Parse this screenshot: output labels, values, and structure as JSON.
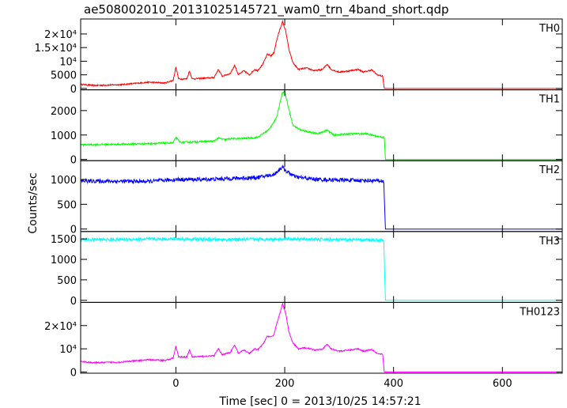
{
  "chart_data": {
    "type": "line",
    "title": "ae508002010_20131025145721_wam0_trn_4band_short.qdp",
    "xlabel": "Time [sec] 0 = 2013/10/25 14:57:21",
    "ylabel": "Counts/sec",
    "xlim": [
      -175,
      710
    ],
    "x_ticks": [
      {
        "value": 0,
        "label": "0"
      },
      {
        "value": 200,
        "label": "200"
      },
      {
        "value": 400,
        "label": "400"
      },
      {
        "value": 600,
        "label": "600"
      }
    ],
    "grid": false,
    "panels": [
      {
        "label": "TH0",
        "color": "#ff0000",
        "ylim": [
          -500,
          25500
        ],
        "y_ticks": [
          {
            "value": 0,
            "label": "0"
          },
          {
            "value": 5000,
            "label": "5000"
          },
          {
            "value": 10000,
            "label": "10⁴"
          },
          {
            "value": 15000,
            "label": "1.5×10⁴"
          },
          {
            "value": 20000,
            "label": "2×10⁴"
          }
        ],
        "noise": 250,
        "points": [
          [
            -175,
            1500
          ],
          [
            -150,
            1100
          ],
          [
            -100,
            1400
          ],
          [
            -50,
            2300
          ],
          [
            -20,
            2000
          ],
          [
            -5,
            3000
          ],
          [
            0,
            7800
          ],
          [
            5,
            3500
          ],
          [
            20,
            3500
          ],
          [
            25,
            6400
          ],
          [
            30,
            3500
          ],
          [
            70,
            4000
          ],
          [
            78,
            7000
          ],
          [
            85,
            4500
          ],
          [
            100,
            5500
          ],
          [
            108,
            8500
          ],
          [
            115,
            5000
          ],
          [
            125,
            6500
          ],
          [
            135,
            5000
          ],
          [
            145,
            7000
          ],
          [
            150,
            6500
          ],
          [
            160,
            9000
          ],
          [
            168,
            12500
          ],
          [
            175,
            12000
          ],
          [
            180,
            13000
          ],
          [
            185,
            17500
          ],
          [
            190,
            21000
          ],
          [
            196,
            24500
          ],
          [
            202,
            21000
          ],
          [
            208,
            14000
          ],
          [
            215,
            9500
          ],
          [
            225,
            7000
          ],
          [
            240,
            7500
          ],
          [
            255,
            6500
          ],
          [
            270,
            7000
          ],
          [
            278,
            9000
          ],
          [
            285,
            7000
          ],
          [
            300,
            6000
          ],
          [
            320,
            6500
          ],
          [
            335,
            7000
          ],
          [
            345,
            6000
          ],
          [
            360,
            6800
          ],
          [
            370,
            5000
          ],
          [
            380,
            4500
          ],
          [
            383,
            0
          ],
          [
            710,
            0
          ]
        ]
      },
      {
        "label": "TH1",
        "color": "#00ff00",
        "ylim": [
          -50,
          2850
        ],
        "y_ticks": [
          {
            "value": 0,
            "label": "0"
          },
          {
            "value": 1000,
            "label": "1000"
          },
          {
            "value": 2000,
            "label": "2000"
          }
        ],
        "noise": 35,
        "points": [
          [
            -175,
            600
          ],
          [
            -100,
            620
          ],
          [
            -50,
            650
          ],
          [
            -5,
            680
          ],
          [
            0,
            900
          ],
          [
            8,
            700
          ],
          [
            70,
            750
          ],
          [
            78,
            880
          ],
          [
            90,
            800
          ],
          [
            100,
            850
          ],
          [
            120,
            850
          ],
          [
            150,
            900
          ],
          [
            170,
            1200
          ],
          [
            185,
            1700
          ],
          [
            195,
            2700
          ],
          [
            200,
            2800
          ],
          [
            205,
            2300
          ],
          [
            215,
            1400
          ],
          [
            230,
            1200
          ],
          [
            260,
            1050
          ],
          [
            278,
            1200
          ],
          [
            290,
            1000
          ],
          [
            320,
            1050
          ],
          [
            350,
            1050
          ],
          [
            370,
            950
          ],
          [
            383,
            900
          ],
          [
            385,
            0
          ],
          [
            710,
            0
          ]
        ]
      },
      {
        "label": "TH2",
        "color": "#0000ff",
        "ylim": [
          -50,
          1380
        ],
        "y_ticks": [
          {
            "value": 0,
            "label": "0"
          },
          {
            "value": 500,
            "label": "500"
          },
          {
            "value": 1000,
            "label": "1000"
          }
        ],
        "noise": 40,
        "points": [
          [
            -175,
            970
          ],
          [
            -50,
            960
          ],
          [
            0,
            1000
          ],
          [
            50,
            1000
          ],
          [
            100,
            1020
          ],
          [
            150,
            1040
          ],
          [
            180,
            1100
          ],
          [
            195,
            1250
          ],
          [
            205,
            1150
          ],
          [
            220,
            1050
          ],
          [
            260,
            1000
          ],
          [
            300,
            990
          ],
          [
            350,
            980
          ],
          [
            382,
            970
          ],
          [
            385,
            0
          ],
          [
            710,
            0
          ]
        ]
      },
      {
        "label": "TH3",
        "color": "#00ffff",
        "ylim": [
          -50,
          1680
        ],
        "y_ticks": [
          {
            "value": 0,
            "label": "0"
          },
          {
            "value": 500,
            "label": "500"
          },
          {
            "value": 1000,
            "label": "1000"
          },
          {
            "value": 1500,
            "label": "1500"
          }
        ],
        "noise": 40,
        "points": [
          [
            -175,
            1480
          ],
          [
            0,
            1500
          ],
          [
            100,
            1480
          ],
          [
            200,
            1500
          ],
          [
            300,
            1480
          ],
          [
            382,
            1470
          ],
          [
            385,
            0
          ],
          [
            710,
            0
          ]
        ]
      },
      {
        "label": "TH0123",
        "color": "#ff00ff",
        "ylim": [
          -500,
          30000
        ],
        "y_ticks": [
          {
            "value": 0,
            "label": "0"
          },
          {
            "value": 10000,
            "label": "10⁴"
          },
          {
            "value": 20000,
            "label": "2×10⁴"
          }
        ],
        "noise": 300,
        "points": [
          [
            -175,
            4500
          ],
          [
            -150,
            4000
          ],
          [
            -100,
            4300
          ],
          [
            -50,
            5300
          ],
          [
            -20,
            5000
          ],
          [
            -5,
            6000
          ],
          [
            0,
            11000
          ],
          [
            5,
            6500
          ],
          [
            20,
            6500
          ],
          [
            25,
            9500
          ],
          [
            30,
            6500
          ],
          [
            70,
            7000
          ],
          [
            78,
            10000
          ],
          [
            85,
            7500
          ],
          [
            100,
            8500
          ],
          [
            108,
            11500
          ],
          [
            115,
            8000
          ],
          [
            125,
            9500
          ],
          [
            135,
            8000
          ],
          [
            145,
            10000
          ],
          [
            150,
            9500
          ],
          [
            160,
            12000
          ],
          [
            168,
            15500
          ],
          [
            175,
            15000
          ],
          [
            180,
            16000
          ],
          [
            185,
            20500
          ],
          [
            190,
            24500
          ],
          [
            196,
            29500
          ],
          [
            202,
            25000
          ],
          [
            208,
            17000
          ],
          [
            215,
            12500
          ],
          [
            225,
            10000
          ],
          [
            240,
            10500
          ],
          [
            255,
            9500
          ],
          [
            270,
            10000
          ],
          [
            278,
            12000
          ],
          [
            285,
            10000
          ],
          [
            300,
            9000
          ],
          [
            320,
            9500
          ],
          [
            335,
            10000
          ],
          [
            345,
            9000
          ],
          [
            360,
            9800
          ],
          [
            370,
            8000
          ],
          [
            380,
            7500
          ],
          [
            383,
            0
          ],
          [
            710,
            0
          ]
        ]
      }
    ]
  }
}
